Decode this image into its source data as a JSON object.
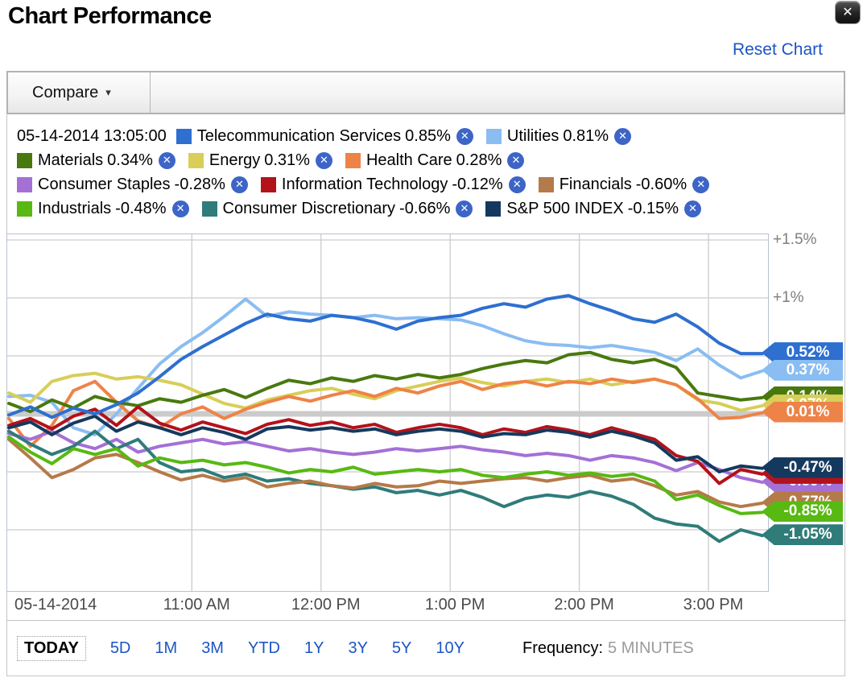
{
  "header": {
    "title": "Chart Performance",
    "close_icon": "✕",
    "reset_label": "Reset Chart"
  },
  "toolbar": {
    "compare_label": "Compare",
    "dropdown_arrow": "▾"
  },
  "legend": {
    "timestamp": "05-14-2014 13:05:00",
    "remove_icon": "✕",
    "rows": [
      [
        "telecom",
        "utilities"
      ],
      [
        "materials",
        "energy",
        "healthcare"
      ],
      [
        "staples",
        "infotech",
        "financials"
      ],
      [
        "industrials",
        "consdisc",
        "sp500"
      ]
    ]
  },
  "chart_data": {
    "type": "line",
    "title": "Chart Performance",
    "frequency": "5 MINUTES",
    "x_axis": {
      "date_label": "05-14-2014",
      "hour_tick_labels": [
        "11:00 AM",
        "12:00 PM",
        "1:00 PM",
        "2:00 PM",
        "3:00 PM"
      ],
      "hour_tick_minutes": [
        85,
        145,
        205,
        265,
        325
      ],
      "start_time": "09:35 AM",
      "end_time": "03:25 PM",
      "sample_interval_minutes": 10
    },
    "y_axis": {
      "unit": "%",
      "visible_tick_labels": [
        {
          "label": "+1.5%",
          "pct": 1.5
        },
        {
          "label": "+1%",
          "pct": 1.0
        }
      ],
      "gridlines_pct": [
        1.5,
        1.0,
        0.5,
        -0.5,
        -1.0
      ],
      "zero_line_pct": 0,
      "range_pct": [
        -1.55,
        1.55
      ],
      "grid_color": "#cccccc",
      "zero_line_color": "#cbcbcb"
    },
    "series": [
      {
        "id": "utilities",
        "label": "Utilities",
        "legend_value": "0.81%",
        "end_tag": "0.37%",
        "end_tag_z": 4,
        "color": "#8abdf2",
        "values": [
          0.15,
          0.16,
          0.1,
          -0.12,
          -0.18,
          0.0,
          0.22,
          0.43,
          0.58,
          0.7,
          0.84,
          0.99,
          0.84,
          0.88,
          0.86,
          0.85,
          0.83,
          0.85,
          0.82,
          0.83,
          0.82,
          0.81,
          0.76,
          0.69,
          0.63,
          0.6,
          0.59,
          0.57,
          0.59,
          0.56,
          0.53,
          0.46,
          0.56,
          0.42,
          0.31,
          0.37
        ]
      },
      {
        "id": "energy",
        "label": "Energy",
        "legend_value": "0.31%",
        "end_tag": "0.07%",
        "end_tag_z": 2,
        "color": "#d8ce58",
        "values": [
          0.18,
          0.1,
          0.28,
          0.33,
          0.35,
          0.3,
          0.32,
          0.29,
          0.25,
          0.17,
          0.09,
          0.05,
          0.12,
          0.16,
          0.2,
          0.22,
          0.17,
          0.13,
          0.2,
          0.24,
          0.28,
          0.31,
          0.27,
          0.24,
          0.28,
          0.3,
          0.27,
          0.3,
          0.25,
          0.28,
          0.3,
          0.25,
          0.12,
          0.09,
          0.03,
          0.07
        ]
      },
      {
        "id": "healthcare",
        "label": "Health Care",
        "legend_value": "0.28%",
        "end_tag": "0.01%",
        "end_tag_z": 5,
        "color": "#ee8348",
        "values": [
          -0.04,
          -0.28,
          -0.1,
          0.2,
          0.28,
          0.1,
          -0.06,
          -0.12,
          0.0,
          0.06,
          -0.04,
          0.04,
          0.1,
          0.15,
          0.11,
          0.16,
          0.2,
          0.15,
          0.22,
          0.18,
          0.24,
          0.28,
          0.21,
          0.26,
          0.28,
          0.24,
          0.28,
          0.26,
          0.3,
          0.27,
          0.3,
          0.25,
          0.13,
          -0.04,
          -0.03,
          0.01
        ]
      },
      {
        "id": "materials",
        "label": "Materials",
        "legend_value": "0.34%",
        "end_tag": "0.14%",
        "end_tag_z": 1,
        "color": "#49790e",
        "values": [
          0.09,
          0.02,
          0.12,
          0.05,
          0.15,
          0.1,
          0.07,
          0.13,
          0.1,
          0.16,
          0.21,
          0.14,
          0.22,
          0.29,
          0.26,
          0.31,
          0.28,
          0.33,
          0.3,
          0.34,
          0.31,
          0.34,
          0.39,
          0.43,
          0.46,
          0.44,
          0.51,
          0.53,
          0.47,
          0.44,
          0.47,
          0.4,
          0.18,
          0.15,
          0.12,
          0.14
        ]
      },
      {
        "id": "staples",
        "label": "Consumer Staples",
        "legend_value": "-0.28%",
        "end_tag": "-0.59%",
        "end_tag_z": 6,
        "color": "#a470d6",
        "values": [
          -0.17,
          -0.22,
          -0.15,
          -0.25,
          -0.3,
          -0.22,
          -0.33,
          -0.28,
          -0.25,
          -0.22,
          -0.26,
          -0.24,
          -0.28,
          -0.32,
          -0.3,
          -0.33,
          -0.35,
          -0.33,
          -0.3,
          -0.32,
          -0.3,
          -0.28,
          -0.31,
          -0.33,
          -0.36,
          -0.34,
          -0.36,
          -0.4,
          -0.36,
          -0.38,
          -0.42,
          -0.49,
          -0.42,
          -0.48,
          -0.55,
          -0.59
        ]
      },
      {
        "id": "consdisc",
        "label": "Consumer Discretionary",
        "legend_value": "-0.66%",
        "end_tag": "-1.05%",
        "end_tag_z": 9,
        "color": "#2f7c7a",
        "values": [
          -0.15,
          -0.26,
          -0.35,
          -0.28,
          -0.15,
          -0.3,
          -0.22,
          -0.42,
          -0.5,
          -0.48,
          -0.55,
          -0.52,
          -0.58,
          -0.56,
          -0.6,
          -0.62,
          -0.65,
          -0.63,
          -0.68,
          -0.66,
          -0.7,
          -0.66,
          -0.72,
          -0.8,
          -0.73,
          -0.7,
          -0.72,
          -0.67,
          -0.71,
          -0.78,
          -0.9,
          -0.95,
          -0.97,
          -1.1,
          -1.0,
          -1.05
        ]
      },
      {
        "id": "financials",
        "label": "Financials",
        "legend_value": "-0.60%",
        "end_tag": "-0.77%",
        "end_tag_z": 7,
        "color": "#b57a49",
        "values": [
          -0.22,
          -0.38,
          -0.55,
          -0.48,
          -0.38,
          -0.35,
          -0.42,
          -0.5,
          -0.57,
          -0.53,
          -0.58,
          -0.55,
          -0.63,
          -0.6,
          -0.58,
          -0.62,
          -0.64,
          -0.6,
          -0.63,
          -0.62,
          -0.58,
          -0.6,
          -0.58,
          -0.56,
          -0.55,
          -0.58,
          -0.55,
          -0.53,
          -0.58,
          -0.56,
          -0.62,
          -0.7,
          -0.67,
          -0.76,
          -0.8,
          -0.77
        ]
      },
      {
        "id": "industrials",
        "label": "Industrials",
        "legend_value": "-0.48%",
        "end_tag": "-0.85%",
        "end_tag_z": 8,
        "color": "#57b912",
        "values": [
          -0.2,
          -0.33,
          -0.43,
          -0.3,
          -0.35,
          -0.3,
          -0.45,
          -0.38,
          -0.42,
          -0.4,
          -0.44,
          -0.42,
          -0.46,
          -0.51,
          -0.48,
          -0.5,
          -0.46,
          -0.52,
          -0.5,
          -0.48,
          -0.5,
          -0.48,
          -0.53,
          -0.55,
          -0.52,
          -0.5,
          -0.53,
          -0.51,
          -0.54,
          -0.52,
          -0.58,
          -0.74,
          -0.7,
          -0.79,
          -0.86,
          -0.85
        ]
      },
      {
        "id": "infotech",
        "label": "Information Technology",
        "legend_value": "-0.12%",
        "end_tag": "-0.52%",
        "end_tag_z": 8,
        "color": "#b3121b",
        "values": [
          -0.1,
          -0.04,
          -0.13,
          -0.02,
          0.04,
          -0.1,
          0.06,
          -0.08,
          -0.14,
          -0.07,
          -0.12,
          -0.17,
          -0.09,
          -0.05,
          -0.1,
          -0.07,
          -0.12,
          -0.09,
          -0.16,
          -0.12,
          -0.09,
          -0.12,
          -0.18,
          -0.13,
          -0.16,
          -0.11,
          -0.14,
          -0.18,
          -0.12,
          -0.17,
          -0.22,
          -0.36,
          -0.41,
          -0.6,
          -0.48,
          -0.52
        ]
      },
      {
        "id": "sp500",
        "label": "S&P 500 INDEX",
        "legend_value": "-0.15%",
        "end_tag": "-0.47%",
        "end_tag_z": 9,
        "color": "#15395e",
        "values": [
          -0.12,
          -0.07,
          -0.18,
          -0.08,
          -0.02,
          -0.15,
          -0.07,
          -0.12,
          -0.18,
          -0.12,
          -0.16,
          -0.22,
          -0.13,
          -0.11,
          -0.14,
          -0.12,
          -0.15,
          -0.13,
          -0.18,
          -0.15,
          -0.13,
          -0.15,
          -0.2,
          -0.17,
          -0.18,
          -0.14,
          -0.16,
          -0.2,
          -0.15,
          -0.19,
          -0.25,
          -0.4,
          -0.37,
          -0.5,
          -0.45,
          -0.47
        ]
      },
      {
        "id": "telecom",
        "label": "Telecommunication Services",
        "legend_value": "0.85%",
        "end_tag": "0.52%",
        "end_tag_z": 3,
        "color": "#2e6fd0",
        "values": [
          -0.01,
          0.06,
          -0.03,
          0.05,
          0.0,
          0.08,
          0.18,
          0.32,
          0.47,
          0.58,
          0.68,
          0.78,
          0.86,
          0.82,
          0.8,
          0.85,
          0.83,
          0.79,
          0.73,
          0.8,
          0.83,
          0.85,
          0.91,
          0.95,
          0.92,
          0.99,
          1.02,
          0.95,
          0.89,
          0.82,
          0.79,
          0.86,
          0.75,
          0.61,
          0.52,
          0.52
        ]
      }
    ]
  },
  "footer": {
    "periods": [
      {
        "label": "TODAY",
        "active": true
      },
      {
        "label": "5D",
        "active": false
      },
      {
        "label": "1M",
        "active": false
      },
      {
        "label": "3M",
        "active": false
      },
      {
        "label": "YTD",
        "active": false
      },
      {
        "label": "1Y",
        "active": false
      },
      {
        "label": "3Y",
        "active": false
      },
      {
        "label": "5Y",
        "active": false
      },
      {
        "label": "10Y",
        "active": false
      }
    ],
    "frequency_label": "Frequency:",
    "frequency_value": "5 MINUTES"
  }
}
